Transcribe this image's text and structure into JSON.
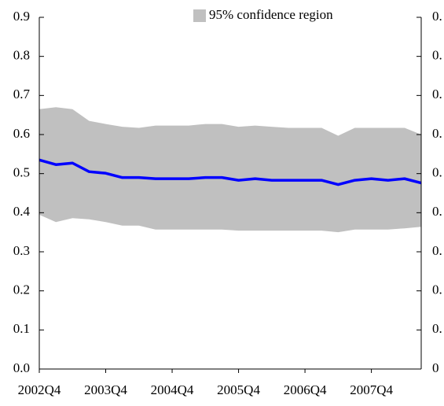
{
  "chart_data": {
    "type": "line",
    "categories": [
      "2002Q4",
      null,
      null,
      null,
      "2003Q4",
      null,
      null,
      null,
      "2004Q4",
      null,
      null,
      null,
      "2005Q4",
      null,
      null,
      null,
      "2006Q4",
      null,
      null,
      null,
      "2007Q4",
      null,
      null,
      null
    ],
    "series": [
      {
        "name": "95% confidence region",
        "color": "#c0c0c0",
        "upper": [
          0.665,
          0.67,
          0.665,
          0.635,
          0.627,
          0.62,
          0.617,
          0.623,
          0.623,
          0.623,
          0.627,
          0.627,
          0.62,
          0.623,
          0.62,
          0.617,
          0.617,
          0.617,
          0.597,
          0.617,
          0.617,
          0.617,
          0.617,
          0.6
        ],
        "lower": [
          0.395,
          0.376,
          0.386,
          0.383,
          0.376,
          0.367,
          0.367,
          0.357,
          0.357,
          0.357,
          0.357,
          0.357,
          0.354,
          0.354,
          0.354,
          0.354,
          0.354,
          0.354,
          0.35,
          0.357,
          0.357,
          0.357,
          0.36,
          0.364
        ]
      },
      {
        "color": "#0000ff",
        "values": [
          0.535,
          0.523,
          0.527,
          0.505,
          0.501,
          0.49,
          0.49,
          0.487,
          0.487,
          0.487,
          0.49,
          0.49,
          0.483,
          0.487,
          0.483,
          0.483,
          0.483,
          0.483,
          0.472,
          0.483,
          0.487,
          0.483,
          0.487,
          0.476
        ]
      }
    ],
    "ylim": [
      0,
      0.9
    ],
    "yticks": [
      {
        "value": 0,
        "label": "0.0"
      },
      0.1,
      0.2,
      0.3,
      0.4,
      0.5,
      0.6,
      0.7,
      0.8,
      0.9
    ],
    "y2lim": [
      0,
      0.9
    ],
    "y2ticks": [
      {
        "value": 0,
        "label": "0"
      },
      {
        "value": 0.1,
        "label": "0."
      },
      {
        "value": 0.2,
        "label": "0."
      },
      {
        "value": 0.3,
        "label": "0."
      },
      {
        "value": 0.4,
        "label": "0."
      },
      {
        "value": 0.5,
        "label": "0."
      },
      {
        "value": 0.6,
        "label": "0."
      },
      {
        "value": 0.7,
        "label": "0."
      },
      {
        "value": 0.8,
        "label": "0."
      },
      {
        "value": 0.9,
        "label": "0."
      }
    ],
    "legend": "top"
  }
}
